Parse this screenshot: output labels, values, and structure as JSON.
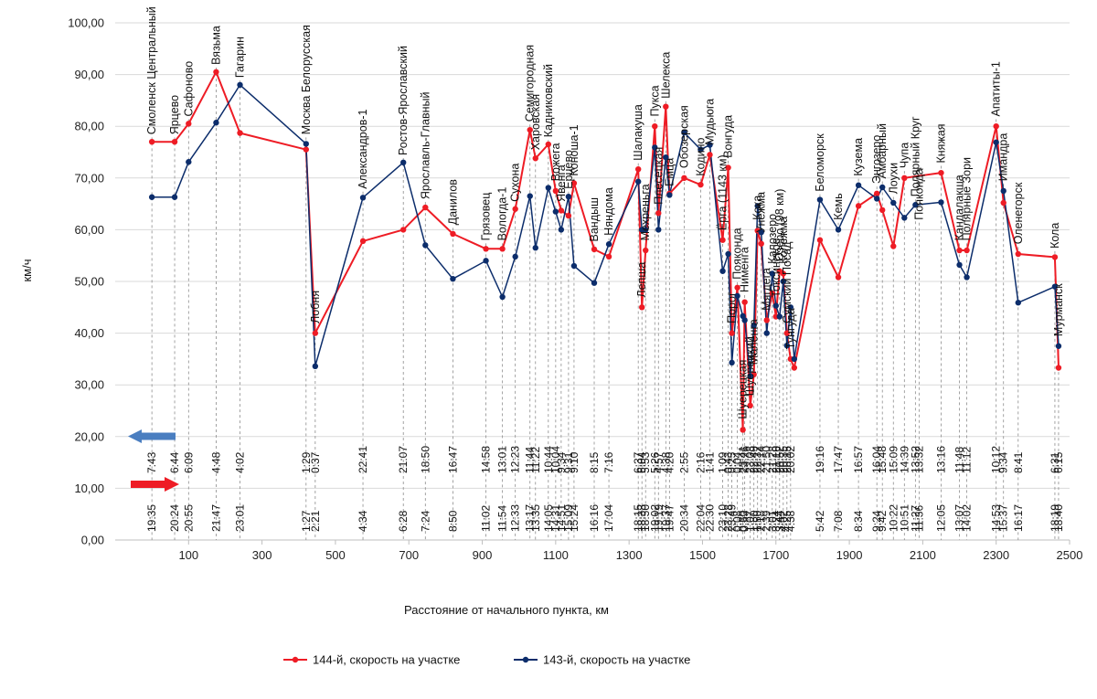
{
  "chart_data": {
    "type": "line",
    "ylabel": "км/ч",
    "xlabel": "Расстояние от начального пункта, км",
    "xlim": [
      -100,
      2500
    ],
    "ylim": [
      0,
      100
    ],
    "x_ticks": [
      100,
      300,
      500,
      700,
      900,
      1100,
      1300,
      1500,
      1700,
      1900,
      2100,
      2300,
      2500
    ],
    "x_tick_labels": [
      "100",
      "300",
      "500",
      "700",
      "900",
      "1100",
      "1300",
      "1500",
      "1700",
      "1900",
      "2100",
      "2300",
      "2500"
    ],
    "y_ticks": [
      0,
      10,
      20,
      30,
      40,
      50,
      60,
      70,
      80,
      90,
      100
    ],
    "y_tick_labels": [
      "0,00",
      "10,00",
      "20,00",
      "30,00",
      "40,00",
      "50,00",
      "60,00",
      "70,00",
      "80,00",
      "90,00",
      "100,00"
    ],
    "direction_arrows": {
      "up": "143-й ←",
      "down": "144-й →"
    },
    "series": [
      {
        "name": "144-й, скорость на участке",
        "color": "#ee1c25",
        "points": [
          [
            0,
            77
          ],
          [
            62,
            77
          ],
          [
            100,
            80.5
          ],
          [
            175,
            90.5
          ],
          [
            240,
            78.7
          ],
          [
            420,
            75.5
          ],
          [
            445,
            40
          ],
          [
            575,
            57.8
          ],
          [
            685,
            60
          ],
          [
            745,
            64.3
          ],
          [
            820,
            59.2
          ],
          [
            910,
            56.3
          ],
          [
            955,
            56.3
          ],
          [
            990,
            64
          ],
          [
            1030,
            79.3
          ],
          [
            1045,
            73.8
          ],
          [
            1080,
            76.5
          ],
          [
            1100,
            67.5
          ],
          [
            1115,
            63.7
          ],
          [
            1135,
            62.7
          ],
          [
            1150,
            69
          ],
          [
            1205,
            56.2
          ],
          [
            1245,
            54.8
          ],
          [
            1325,
            71.7
          ],
          [
            1335,
            45
          ],
          [
            1345,
            56
          ],
          [
            1370,
            80
          ],
          [
            1380,
            63.2
          ],
          [
            1400,
            83.8
          ],
          [
            1410,
            67
          ],
          [
            1450,
            70
          ],
          [
            1495,
            68.7
          ],
          [
            1520,
            74.5
          ],
          [
            1555,
            58
          ],
          [
            1570,
            72
          ],
          [
            1580,
            40
          ],
          [
            1595,
            48.8
          ],
          [
            1610,
            21.3
          ],
          [
            1615,
            46
          ],
          [
            1630,
            26
          ],
          [
            1640,
            32
          ],
          [
            1650,
            59.8
          ],
          [
            1660,
            57.3
          ],
          [
            1675,
            42.5
          ],
          [
            1690,
            47.7
          ],
          [
            1700,
            43.2
          ],
          [
            1710,
            52
          ],
          [
            1720,
            51.5
          ],
          [
            1730,
            40
          ],
          [
            1740,
            35
          ],
          [
            1750,
            33.3
          ],
          [
            1820,
            58
          ],
          [
            1870,
            50.8
          ],
          [
            1925,
            64.6
          ],
          [
            1975,
            67
          ],
          [
            1990,
            63.8
          ],
          [
            2020,
            56.8
          ],
          [
            2050,
            70
          ],
          [
            2150,
            71
          ],
          [
            2200,
            56
          ],
          [
            2220,
            56
          ],
          [
            2300,
            80
          ],
          [
            2320,
            65.2
          ],
          [
            2360,
            55.3
          ],
          [
            2460,
            54.7
          ],
          [
            2470,
            33.3
          ]
        ]
      },
      {
        "name": "143-й, скорость на участке",
        "color": "#0c2d6b",
        "points": [
          [
            0,
            66.3
          ],
          [
            62,
            66.3
          ],
          [
            100,
            73.1
          ],
          [
            175,
            80.7
          ],
          [
            240,
            88
          ],
          [
            420,
            76.6
          ],
          [
            445,
            33.6
          ],
          [
            575,
            66.2
          ],
          [
            685,
            73
          ],
          [
            745,
            57
          ],
          [
            820,
            50.5
          ],
          [
            910,
            54
          ],
          [
            955,
            47
          ],
          [
            990,
            54.8
          ],
          [
            1030,
            66.5
          ],
          [
            1045,
            56.5
          ],
          [
            1080,
            68.1
          ],
          [
            1100,
            63.5
          ],
          [
            1115,
            60
          ],
          [
            1135,
            66.4
          ],
          [
            1150,
            53
          ],
          [
            1205,
            49.7
          ],
          [
            1245,
            57.2
          ],
          [
            1325,
            69.3
          ],
          [
            1335,
            60
          ],
          [
            1345,
            60
          ],
          [
            1370,
            75.9
          ],
          [
            1380,
            60
          ],
          [
            1400,
            74
          ],
          [
            1410,
            66.7
          ],
          [
            1450,
            78.8
          ],
          [
            1495,
            75.5
          ],
          [
            1520,
            76.4
          ],
          [
            1555,
            52
          ],
          [
            1570,
            55.3
          ],
          [
            1580,
            34.3
          ],
          [
            1595,
            47.2
          ],
          [
            1610,
            43.3
          ],
          [
            1615,
            42.5
          ],
          [
            1630,
            31.7
          ],
          [
            1640,
            41.5
          ],
          [
            1650,
            64.6
          ],
          [
            1660,
            59.5
          ],
          [
            1675,
            40
          ],
          [
            1690,
            51.5
          ],
          [
            1700,
            45.3
          ],
          [
            1710,
            43.2
          ],
          [
            1720,
            50
          ],
          [
            1730,
            37.6
          ],
          [
            1740,
            45
          ],
          [
            1750,
            35
          ],
          [
            1820,
            65.8
          ],
          [
            1870,
            60
          ],
          [
            1925,
            68.6
          ],
          [
            1975,
            66
          ],
          [
            1990,
            68.2
          ],
          [
            2020,
            65.2
          ],
          [
            2050,
            62.3
          ],
          [
            2080,
            64.8
          ],
          [
            2150,
            65.3
          ],
          [
            2200,
            53.2
          ],
          [
            2220,
            50.8
          ],
          [
            2300,
            76.9
          ],
          [
            2320,
            67.5
          ],
          [
            2360,
            45.9
          ],
          [
            2460,
            49
          ],
          [
            2470,
            37.5
          ]
        ]
      }
    ],
    "stations": [
      {
        "x": 0,
        "y": 77.5,
        "name": "Смоленск Центральный",
        "t144": "19:35",
        "t143": "7:43"
      },
      {
        "x": 62,
        "y": 77.5,
        "name": "Ярцево",
        "t144": "20:24",
        "t143": "6:44"
      },
      {
        "x": 100,
        "y": 81,
        "name": "Сафоново",
        "t144": "20:55",
        "t143": "6:09"
      },
      {
        "x": 175,
        "y": 91,
        "name": "Вязьма",
        "t144": "21:47",
        "t143": "4:48"
      },
      {
        "x": 240,
        "y": 88.5,
        "name": "Гагарин",
        "t144": "23:01",
        "t143": "4:02"
      },
      {
        "x": 420,
        "y": 77.5,
        "name": "Москва Белорусская",
        "t144": "1:27",
        "t143": "1:29"
      },
      {
        "x": 445,
        "y": 41,
        "name": "Лобня",
        "t144": "2:21",
        "t143": "0:37"
      },
      {
        "x": 575,
        "y": 67,
        "name": "Александров-1",
        "t144": "4:34",
        "t143": "22:41"
      },
      {
        "x": 685,
        "y": 73.5,
        "name": "Ростов-Ярославский",
        "t144": "6:28",
        "t143": "21:07"
      },
      {
        "x": 745,
        "y": 65,
        "name": "Ярославль-Главный",
        "t144": "7:24",
        "t143": "18:50"
      },
      {
        "x": 820,
        "y": 60,
        "name": "Данилов",
        "t144": "8:50",
        "t143": "16:47"
      },
      {
        "x": 910,
        "y": 57,
        "name": "Грязовец",
        "t144": "11:02",
        "t143": "14:58"
      },
      {
        "x": 955,
        "y": 57,
        "name": "Вологда-1",
        "t144": "11:54",
        "t143": "13:01"
      },
      {
        "x": 990,
        "y": 64.5,
        "name": "Сухона",
        "t144": "12:33",
        "t143": "12:23"
      },
      {
        "x": 1030,
        "y": 80,
        "name": "Семигородная",
        "t144": "13:17",
        "t143": "11:44"
      },
      {
        "x": 1045,
        "y": 74.5,
        "name": "Харовская",
        "t144": "13:35",
        "t143": "11:22"
      },
      {
        "x": 1080,
        "y": 77,
        "name": "Кадниковский",
        "t144": "14:05",
        "t143": "10:44"
      },
      {
        "x": 1100,
        "y": 68.5,
        "name": "Вожега",
        "t144": "14:31",
        "t143": "10:04"
      },
      {
        "x": 1115,
        "y": 64.5,
        "name": "Явенга",
        "t144": "14:51",
        "t143": "9:34"
      },
      {
        "x": 1135,
        "y": 67,
        "name": "Ерцево",
        "t144": "15:09",
        "t143": "9:31"
      },
      {
        "x": 1150,
        "y": 69.5,
        "name": "Коноша-1",
        "t144": "15:24",
        "t143": "9:10"
      },
      {
        "x": 1205,
        "y": 56.8,
        "name": "Вандыш",
        "t144": "16:16",
        "t143": "8:15"
      },
      {
        "x": 1245,
        "y": 58,
        "name": "Няндома",
        "t144": "17:04",
        "t143": "7:16"
      },
      {
        "x": 1325,
        "y": 72.5,
        "name": "Шалакуша",
        "t144": "18:15",
        "t143": "6:37"
      },
      {
        "x": 1335,
        "y": 46,
        "name": "Лепша",
        "t144": "18:33",
        "t143": "6:04"
      },
      {
        "x": 1345,
        "y": 57,
        "name": "Мехреньга",
        "t144": "18:50",
        "t143": "5:53"
      },
      {
        "x": 1370,
        "y": 81,
        "name": "Пукса",
        "t144": "19:02",
        "t143": "5:26"
      },
      {
        "x": 1380,
        "y": 64,
        "name": "Плесецкая",
        "t144": "19:19",
        "t143": "4:57"
      },
      {
        "x": 1400,
        "y": 84.5,
        "name": "Шелекса",
        "t144": "19:37",
        "t143": "4:38"
      },
      {
        "x": 1410,
        "y": 67.5,
        "name": "Емца",
        "t144": "19:47",
        "t143": "4:20"
      },
      {
        "x": 1450,
        "y": 71,
        "name": "Обозерская",
        "t144": "20:34",
        "t143": "2:55"
      },
      {
        "x": 1495,
        "y": 69.5,
        "name": "Кодино",
        "t144": "22:04",
        "t143": "2:16"
      },
      {
        "x": 1520,
        "y": 75.5,
        "name": "Мудьюга",
        "t144": "22:30",
        "t143": "1:41"
      },
      {
        "x": 1555,
        "y": 59,
        "name": "Ёрга (1143 км)",
        "t144": "23:10",
        "t143": "1:09"
      },
      {
        "x": 1570,
        "y": 73,
        "name": "Вонгуда",
        "t144": "23:28",
        "t143": "0:43"
      },
      {
        "x": 1580,
        "y": 41,
        "name": "Порог",
        "t144": "23:49",
        "t143": "0:25"
      },
      {
        "x": 1595,
        "y": 49.5,
        "name": "Пояконда",
        "t144": "0:08",
        "t143": "0:04"
      },
      {
        "x": 1610,
        "y": 22.5,
        "name": "Шуерецкая",
        "t144": "0:30",
        "t143": "23:41"
      },
      {
        "x": 1615,
        "y": 47,
        "name": "Нименга",
        "t144": "0:53",
        "t143": "23:26"
      },
      {
        "x": 1630,
        "y": 27,
        "name": "Шуерецкий",
        "t144": "1:07",
        "t143": "23:08"
      },
      {
        "x": 1640,
        "y": 33,
        "name": "Маленга",
        "t144": "1:30",
        "t143": "22:49"
      },
      {
        "x": 1650,
        "y": 61,
        "name": "Кока",
        "t144": "1:50",
        "t143": "22:32"
      },
      {
        "x": 1660,
        "y": 58.5,
        "name": "Унежма",
        "t144": "2:18",
        "t143": "22:14"
      },
      {
        "x": 1675,
        "y": 43.5,
        "name": "Мягдега",
        "t144": "2:39",
        "t143": "21:50"
      },
      {
        "x": 1690,
        "y": 52.5,
        "name": "Калозеро",
        "t144": "3:01",
        "t143": "21:28"
      },
      {
        "x": 1700,
        "y": 46,
        "name": "Токсинское",
        "t144": "3:24",
        "t143": "21:10"
      },
      {
        "x": 1710,
        "y": 53,
        "name": "Озеро (98 км)",
        "t144": "3:44",
        "t143": "20:52"
      },
      {
        "x": 1720,
        "y": 52.5,
        "name": "Колежма",
        "t144": "4:02",
        "t143": "20:35"
      },
      {
        "x": 1730,
        "y": 41,
        "name": "Сумский Посад",
        "t144": "4:25",
        "t143": "20:15"
      },
      {
        "x": 1740,
        "y": 36,
        "name": "Тунгуда",
        "t144": "4:38",
        "t143": "20:02"
      },
      {
        "x": 1820,
        "y": 66.5,
        "name": "Беломорск",
        "t144": "5:42",
        "t143": "19:16"
      },
      {
        "x": 1870,
        "y": 61,
        "name": "Кемь",
        "t144": "7:08",
        "t143": "17:47"
      },
      {
        "x": 1925,
        "y": 69.5,
        "name": "Кузема",
        "t144": "8:34",
        "t143": "16:57"
      },
      {
        "x": 1975,
        "y": 68,
        "name": "Энгозеро",
        "t144": "9:24",
        "t143": "16:04"
      },
      {
        "x": 1990,
        "y": 69,
        "name": "Амбарный",
        "t144": "9:42",
        "t143": "15:48"
      },
      {
        "x": 2020,
        "y": 66,
        "name": "Лоухи",
        "t144": "10:22",
        "t143": "15:09"
      },
      {
        "x": 2050,
        "y": 71,
        "name": "Чупа",
        "t144": "10:51",
        "t143": "14:39"
      },
      {
        "x": 2080,
        "y": 65.5,
        "name": "Полярный Круг",
        "t144": "11:27",
        "t143": "13:52"
      },
      {
        "x": 2090,
        "y": 61,
        "name": "Пояконда",
        "t144": "11:36",
        "t143": "13:32"
      },
      {
        "x": 2150,
        "y": 72,
        "name": "Княжая",
        "t144": "12:05",
        "t143": "13:16"
      },
      {
        "x": 2200,
        "y": 57,
        "name": "Кандалакша",
        "t144": "13:07",
        "t143": "11:48"
      },
      {
        "x": 2220,
        "y": 57,
        "name": "Полярные Зори",
        "t144": "14:02",
        "t143": "11:12"
      },
      {
        "x": 2300,
        "y": 81,
        "name": "Апатиты-1",
        "t144": "14:53",
        "t143": "10:12"
      },
      {
        "x": 2320,
        "y": 68.5,
        "name": "Имандра",
        "t144": "15:37",
        "t143": "9:34"
      },
      {
        "x": 2360,
        "y": 56.3,
        "name": "Оленегорск",
        "t144": "16:17",
        "t143": "8:41"
      },
      {
        "x": 2460,
        "y": 55.5,
        "name": "Кола",
        "t144": "18:19",
        "t143": "6:31"
      },
      {
        "x": 2470,
        "y": 38.5,
        "name": "Мурманск",
        "t144": "18:40",
        "t143": "6:15"
      }
    ]
  }
}
